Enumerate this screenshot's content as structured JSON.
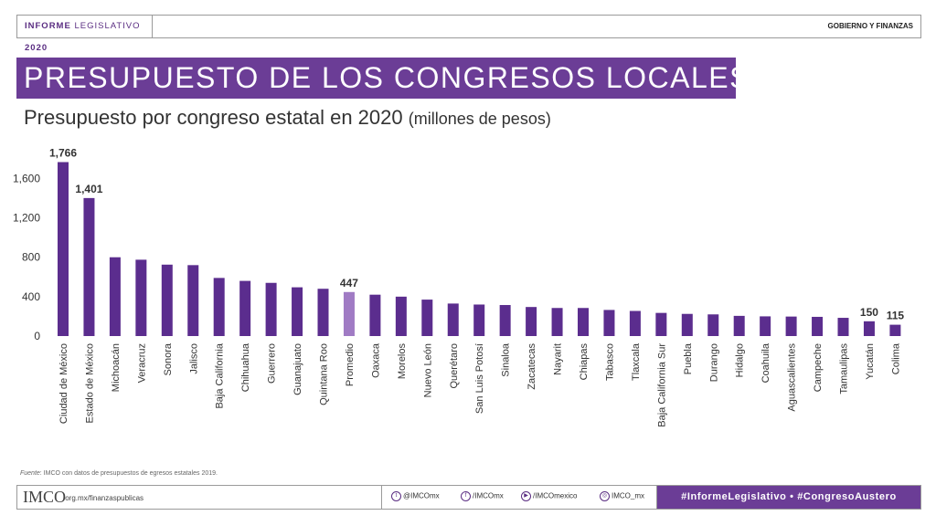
{
  "header": {
    "series_bold": "INFORME",
    "series_mid": "LEGISLATIVO",
    "series_year": "2020",
    "section": "GOBIERNO Y FINANZAS"
  },
  "title": "PRESUPUESTO DE LOS CONGRESOS LOCALES",
  "subtitle": "Presupuesto por congreso estatal en 2020",
  "subtitle_unit": "(millones de pesos)",
  "source": {
    "label": "Fuente",
    "text": ": IMCO con datos de presupuestos de egresos estatales 2019."
  },
  "footer": {
    "logo": "IMCO",
    "url": ".org.mx/finanzaspublicas",
    "social": [
      {
        "icon": "twitter-icon",
        "glyph": "t",
        "text": "@IMCOmx"
      },
      {
        "icon": "facebook-icon",
        "glyph": "f",
        "text": "/IMCOmx"
      },
      {
        "icon": "youtube-icon",
        "glyph": "▶",
        "text": "/IMCOmexico"
      },
      {
        "icon": "instagram-icon",
        "glyph": "◎",
        "text": "IMCO_mx"
      }
    ],
    "hashtags": "#InformeLegislativo • #CongresoAustero"
  },
  "colors": {
    "bar": "#5b2d8e",
    "highlight": "#a07bc4",
    "banner": "#6b3d96"
  },
  "chart_data": {
    "type": "bar",
    "categories": [
      "Ciudad de México",
      "Estado de México",
      "Michoacán",
      "Veracruz",
      "Sonora",
      "Jalisco",
      "Baja California",
      "Chihuahua",
      "Guerrero",
      "Guanajuato",
      "Quintana Roo",
      "Promedio",
      "Oaxaca",
      "Morelos",
      "Nuevo León",
      "Querétaro",
      "San Luis Potosí",
      "Sinaloa",
      "Zacatecas",
      "Nayarit",
      "Chiapas",
      "Tabasco",
      "Tlaxcala",
      "Baja California Sur",
      "Puebla",
      "Durango",
      "Hidalgo",
      "Coahuila",
      "Aguascalientes",
      "Campeche",
      "Tamaulipas",
      "Yucatán",
      "Colima"
    ],
    "values": [
      1766,
      1401,
      800,
      775,
      725,
      720,
      590,
      560,
      540,
      495,
      480,
      447,
      420,
      400,
      370,
      330,
      320,
      315,
      295,
      285,
      285,
      265,
      255,
      235,
      225,
      220,
      205,
      200,
      198,
      195,
      185,
      150,
      115
    ],
    "highlight": "Promedio",
    "labeled": [
      "Ciudad de México",
      "Estado de México",
      "Promedio",
      "Yucatán",
      "Colima"
    ],
    "yticks": [
      0,
      400,
      800,
      1200,
      1600
    ],
    "ylim": [
      0,
      1800
    ]
  }
}
